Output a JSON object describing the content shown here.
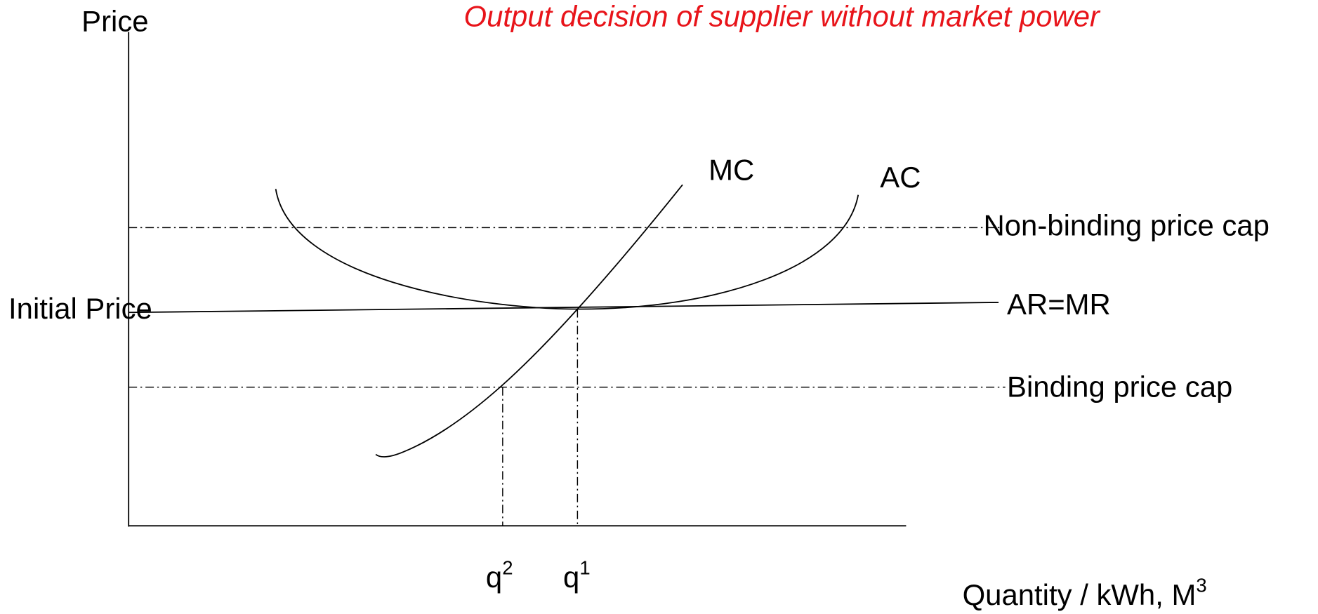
{
  "title": "Output decision of supplier without market power",
  "axes": {
    "y_label": "Price",
    "x_label": "Quantity / kWh, M",
    "x_label_sup": "3"
  },
  "curves": {
    "mc": "MC",
    "ac": "AC"
  },
  "lines": {
    "non_binding": "Non-binding price cap",
    "ar_mr": "AR=MR",
    "initial_price": "Initial Price",
    "binding": "Binding price cap"
  },
  "quantities": [
    {
      "label": "q",
      "sup": "2"
    },
    {
      "label": "q",
      "sup": "1"
    }
  ]
}
